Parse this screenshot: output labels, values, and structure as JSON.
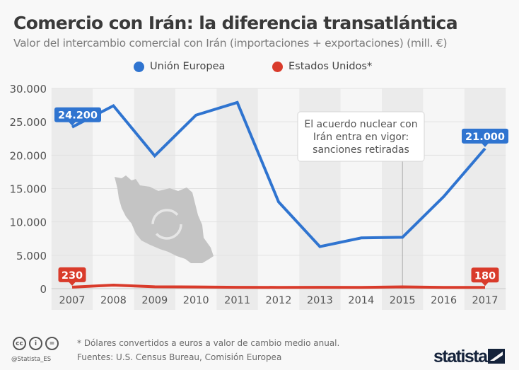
{
  "header": {
    "title": "Comercio con Irán: la diferencia transatlántica",
    "subtitle": "Valor del intercambio comercial con Irán (importaciones + exportaciones) (mill. €)"
  },
  "legend": [
    {
      "label": "Unión Europea",
      "color": "#2f74d0"
    },
    {
      "label": "Estados Unidos*",
      "color": "#d93b2b"
    }
  ],
  "chart_data": {
    "type": "line",
    "title": "Comercio con Irán: la diferencia transatlántica",
    "subtitle": "Valor del intercambio comercial con Irán (importaciones + exportaciones) (mill. €)",
    "xlabel": "",
    "ylabel": "",
    "x": [
      "2007",
      "2008",
      "2009",
      "2010",
      "2011",
      "2012",
      "2013",
      "2014",
      "2015",
      "2016",
      "2017"
    ],
    "ylim": [
      0,
      30000
    ],
    "yticks": [
      0,
      5000,
      10000,
      15000,
      20000,
      25000,
      30000
    ],
    "ytick_labels": [
      "0",
      "5.000",
      "10.000",
      "15.000",
      "20.000",
      "25.000",
      "30.000"
    ],
    "grid": true,
    "legend_position": "top-center",
    "series": [
      {
        "name": "Unión Europea",
        "color": "#2f74d0",
        "values": [
          24200,
          27400,
          19900,
          26000,
          27900,
          13000,
          6300,
          7600,
          7700,
          13800,
          21000
        ]
      },
      {
        "name": "Estados Unidos*",
        "color": "#d93b2b",
        "values": [
          230,
          530,
          280,
          250,
          200,
          190,
          200,
          180,
          260,
          190,
          180
        ]
      }
    ],
    "data_labels": [
      {
        "series": "Unión Europea",
        "x": "2007",
        "text": "24.200"
      },
      {
        "series": "Unión Europea",
        "x": "2017",
        "text": "21.000"
      },
      {
        "series": "Estados Unidos*",
        "x": "2007",
        "text": "230"
      },
      {
        "series": "Estados Unidos*",
        "x": "2017",
        "text": "180"
      }
    ],
    "annotations": [
      {
        "x": "2015",
        "lines": [
          "El acuerdo nuclear con",
          "Irán entra en vigor:",
          "sanciones retiradas"
        ]
      }
    ]
  },
  "footer": {
    "note": "* Dólares convertidos a euros a valor de cambio medio anual.",
    "sources": "Fuentes: U.S. Census Bureau, Comisión Europea",
    "handle": "@Statista_ES",
    "license_icons": [
      "cc",
      "by",
      "nd"
    ],
    "license_glyphs": [
      "cc",
      "i",
      "="
    ],
    "brand": "statista"
  }
}
